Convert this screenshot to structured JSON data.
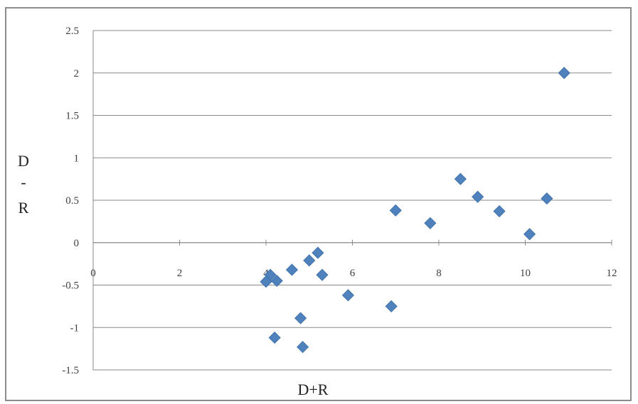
{
  "chart_data": {
    "type": "scatter",
    "title": "",
    "xlabel": "D+R",
    "ylabel_lines": [
      "D",
      "-",
      "R"
    ],
    "xlim": [
      0,
      12
    ],
    "ylim": [
      -1.5,
      2.5
    ],
    "x_ticks": [
      0,
      2,
      4,
      6,
      8,
      10,
      12
    ],
    "y_ticks": [
      2.5,
      2,
      1.5,
      1,
      0.5,
      0,
      -0.5,
      -1,
      -1.5
    ],
    "grid": "horizontal",
    "legend": "none",
    "marker": "diamond",
    "color": "#4f81bd",
    "points": [
      {
        "x": 10.9,
        "y": 2.0
      },
      {
        "x": 8.5,
        "y": 0.75
      },
      {
        "x": 8.9,
        "y": 0.54
      },
      {
        "x": 9.4,
        "y": 0.37
      },
      {
        "x": 10.5,
        "y": 0.52
      },
      {
        "x": 10.1,
        "y": 0.1
      },
      {
        "x": 7.0,
        "y": 0.38
      },
      {
        "x": 7.8,
        "y": 0.23
      },
      {
        "x": 5.2,
        "y": -0.12
      },
      {
        "x": 5.0,
        "y": -0.21
      },
      {
        "x": 4.6,
        "y": -0.32
      },
      {
        "x": 5.3,
        "y": -0.38
      },
      {
        "x": 4.1,
        "y": -0.38
      },
      {
        "x": 4.0,
        "y": -0.46
      },
      {
        "x": 4.25,
        "y": -0.45
      },
      {
        "x": 5.9,
        "y": -0.62
      },
      {
        "x": 6.9,
        "y": -0.75
      },
      {
        "x": 4.8,
        "y": -0.89
      },
      {
        "x": 4.2,
        "y": -1.12
      },
      {
        "x": 4.85,
        "y": -1.23
      }
    ]
  }
}
